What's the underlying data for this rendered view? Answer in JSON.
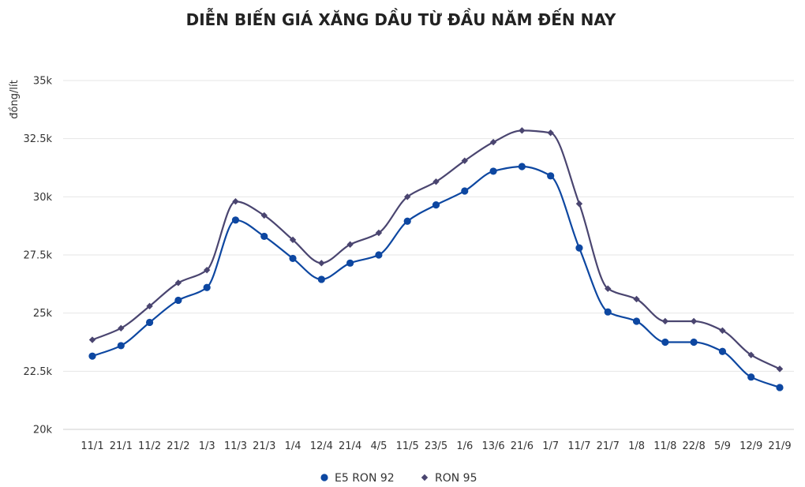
{
  "chart_data": {
    "type": "line",
    "title": "DIỄN BIẾN GIÁ XĂNG DẦU TỪ ĐẦU NĂM ĐẾN NAY",
    "ylabel": "đồng/lít",
    "xlabel": "",
    "categories": [
      "11/1",
      "21/1",
      "11/2",
      "21/2",
      "1/3",
      "11/3",
      "21/3",
      "1/4",
      "12/4",
      "21/4",
      "4/5",
      "11/5",
      "23/5",
      "1/6",
      "13/6",
      "21/6",
      "1/7",
      "11/7",
      "21/7",
      "1/8",
      "11/8",
      "22/8",
      "5/9",
      "12/9",
      "21/9"
    ],
    "ylim": [
      20000,
      35000
    ],
    "yticks": [
      20000,
      22500,
      25000,
      27500,
      30000,
      32500,
      35000
    ],
    "ytick_labels": [
      "20k",
      "22.5k",
      "25k",
      "27.5k",
      "30k",
      "32.5k",
      "35k"
    ],
    "grid": true,
    "legend_position": "bottom",
    "series": [
      {
        "name": "E5 RON 92",
        "color": "#0d47a1",
        "marker": "circle",
        "values": [
          23150,
          23600,
          24600,
          25550,
          26100,
          29000,
          28300,
          27350,
          26450,
          27150,
          27500,
          28950,
          29650,
          30250,
          31100,
          31300,
          30900,
          27800,
          25050,
          24650,
          23750,
          23750,
          23350,
          22250,
          21800
        ]
      },
      {
        "name": "RON 95",
        "color": "#4a4570",
        "marker": "diamond",
        "values": [
          23850,
          24350,
          25300,
          26300,
          26850,
          29800,
          29200,
          28150,
          27150,
          27950,
          28450,
          30000,
          30650,
          31550,
          32350,
          32850,
          32750,
          29700,
          26050,
          25600,
          24650,
          24650,
          24250,
          23200,
          22600
        ]
      }
    ]
  }
}
